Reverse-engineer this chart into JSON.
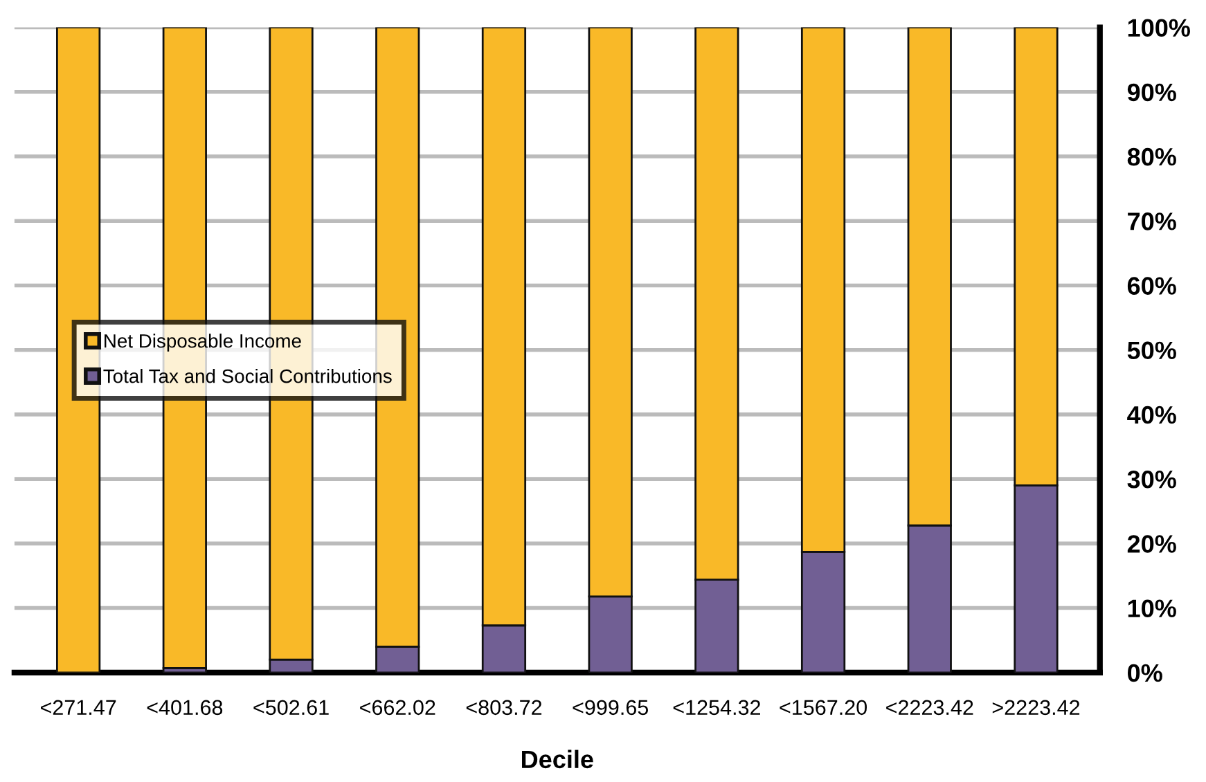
{
  "chart_data": {
    "type": "bar",
    "stacked": true,
    "xlabel": "Decile",
    "categories": [
      "<271.47",
      "<401.68",
      "<502.61",
      "<662.02",
      "<803.72",
      "<999.65",
      "<1254.32",
      "<1567.20",
      "<2223.42",
      ">2223.42"
    ],
    "series": [
      {
        "name": "Total Tax and Social Contributions",
        "color": "#715f94",
        "values": [
          0,
          0.7,
          2,
          4,
          7.3,
          11.8,
          14.4,
          18.7,
          22.8,
          29
        ]
      },
      {
        "name": "Net Disposable Income",
        "color": "#f9b928",
        "values": [
          100,
          99.3,
          98,
          96,
          92.7,
          88.2,
          85.6,
          81.3,
          77.2,
          71
        ]
      }
    ],
    "ylim": [
      0,
      100
    ],
    "yticks": [
      {
        "value": 0,
        "label": "0%"
      },
      {
        "value": 10,
        "label": "10%"
      },
      {
        "value": 20,
        "label": "20%"
      },
      {
        "value": 30,
        "label": "30%"
      },
      {
        "value": 40,
        "label": "40%"
      },
      {
        "value": 50,
        "label": "50%"
      },
      {
        "value": 60,
        "label": "60%"
      },
      {
        "value": 70,
        "label": "70%"
      },
      {
        "value": 80,
        "label": "80%"
      },
      {
        "value": 90,
        "label": "90%"
      },
      {
        "value": 100,
        "label": "100%"
      }
    ],
    "grid": "y",
    "legend": "left"
  }
}
